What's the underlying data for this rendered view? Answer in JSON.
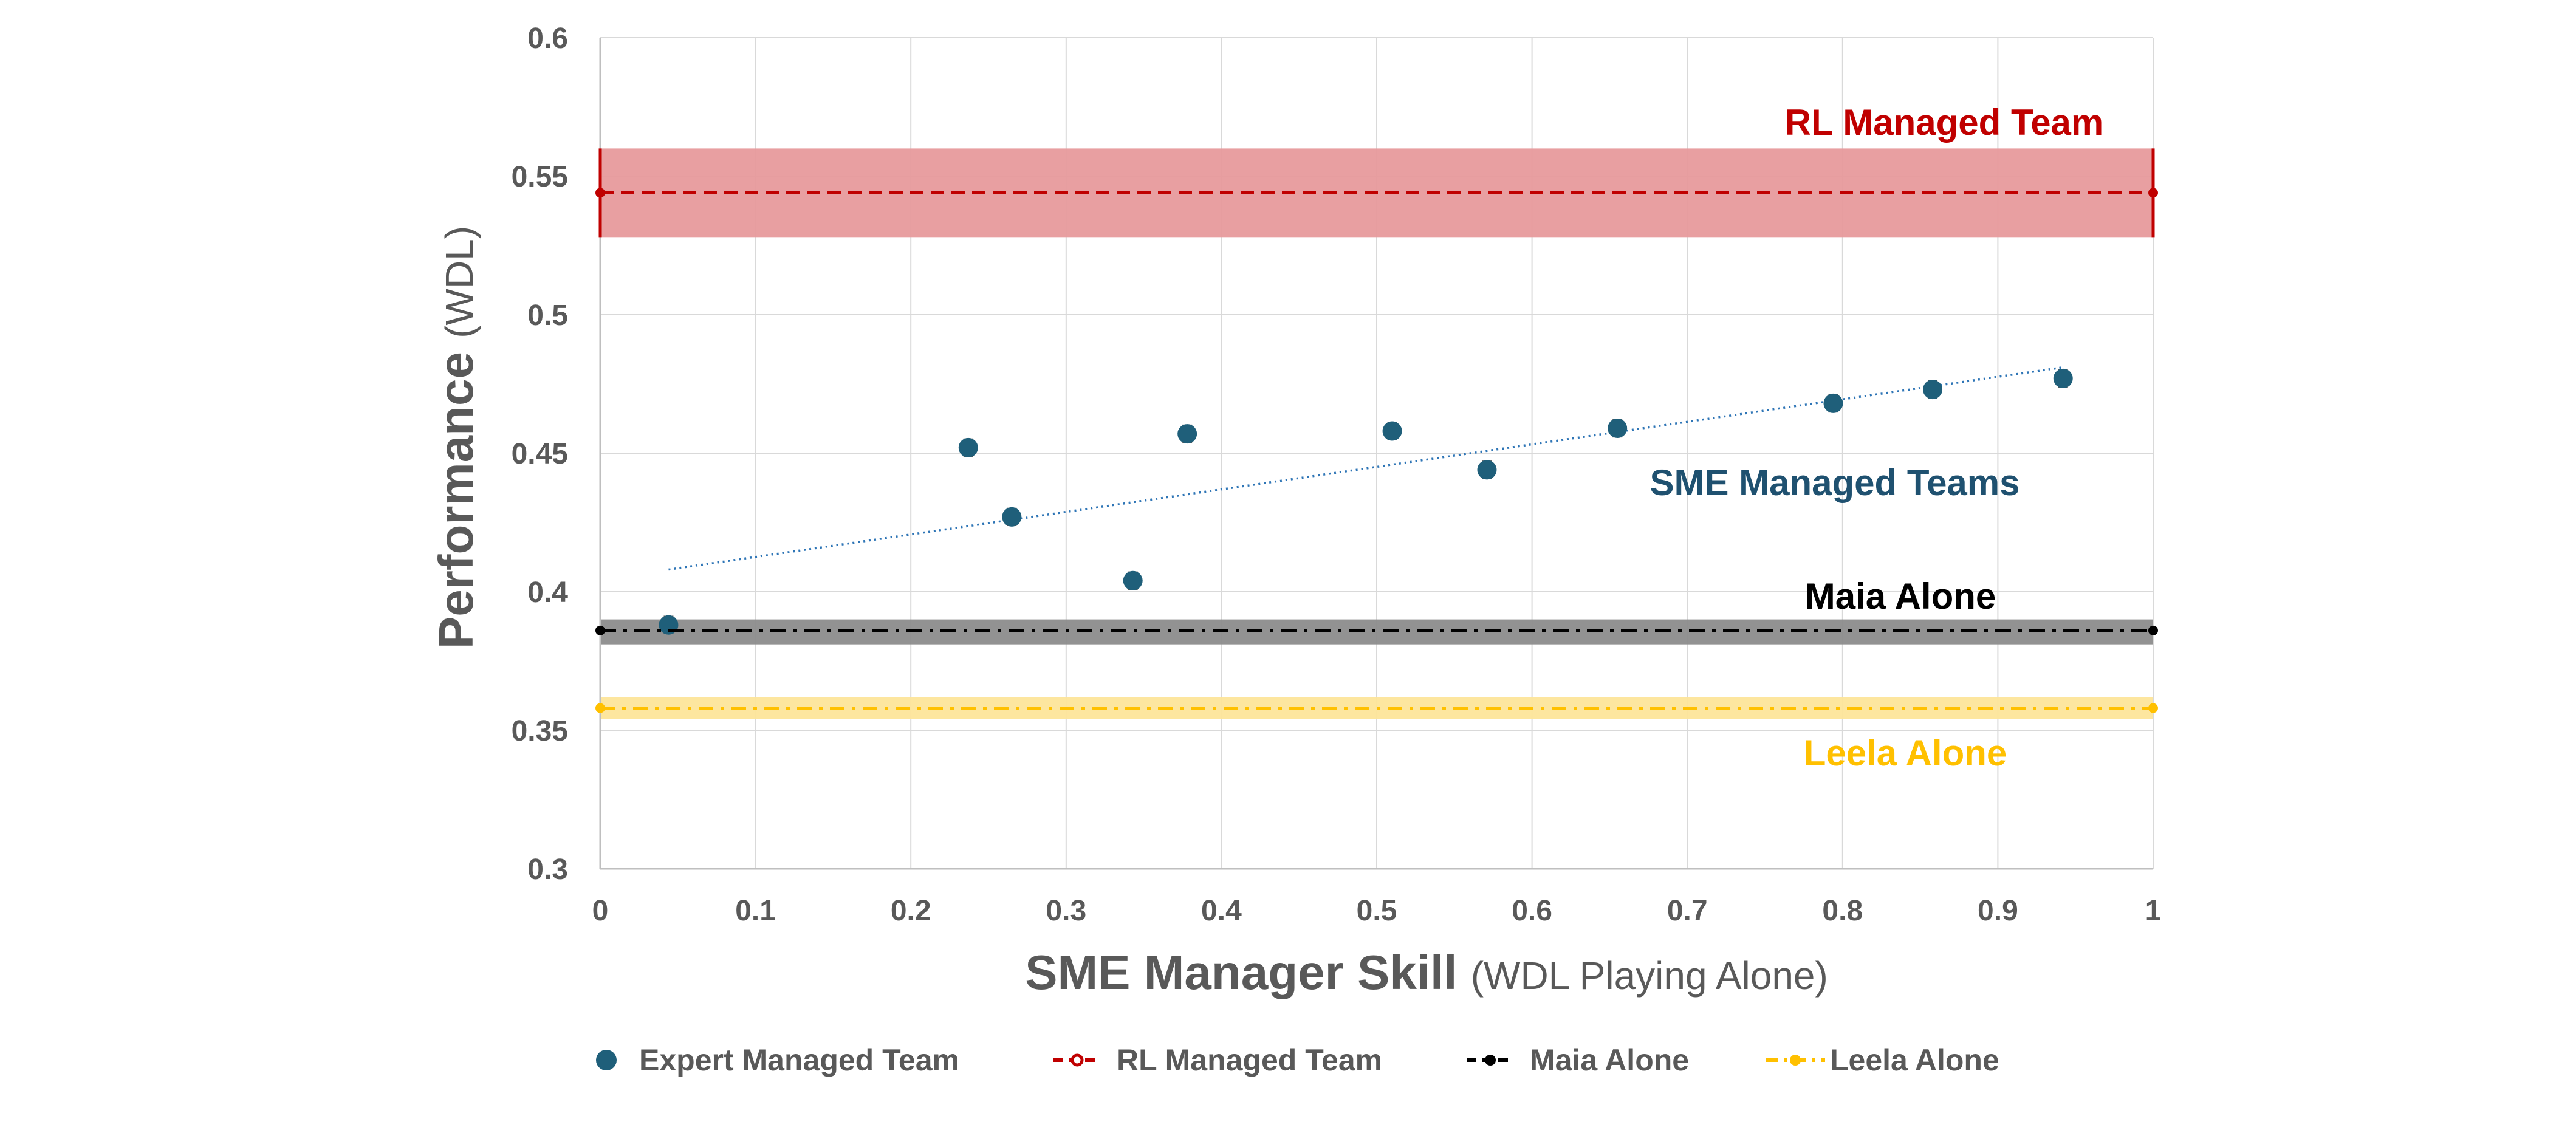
{
  "chart_data": {
    "type": "scatter",
    "title": "",
    "xlabel": {
      "bold": "SME Manager Skill",
      "light": "(WDL Playing Alone)"
    },
    "ylabel": {
      "bold": "Performance",
      "light": "(WDL)"
    },
    "xlim": [
      0,
      1
    ],
    "ylim": [
      0.3,
      0.6
    ],
    "x_ticks": [
      "0",
      "0.1",
      "0.2",
      "0.3",
      "0.4",
      "0.5",
      "0.6",
      "0.7",
      "0.8",
      "0.9",
      "1"
    ],
    "y_ticks": [
      "0.3",
      "0.35",
      "0.4",
      "0.45",
      "0.5",
      "0.55",
      "0.6"
    ],
    "grid": true,
    "legend_position": "bottom",
    "series": [
      {
        "name": "Expert Managed Team",
        "kind": "scatter",
        "color": "#1f5f7a",
        "points": [
          {
            "x": 0.044,
            "y": 0.388
          },
          {
            "x": 0.237,
            "y": 0.452
          },
          {
            "x": 0.265,
            "y": 0.427
          },
          {
            "x": 0.343,
            "y": 0.404
          },
          {
            "x": 0.378,
            "y": 0.457
          },
          {
            "x": 0.51,
            "y": 0.458
          },
          {
            "x": 0.571,
            "y": 0.444
          },
          {
            "x": 0.655,
            "y": 0.459
          },
          {
            "x": 0.794,
            "y": 0.468
          },
          {
            "x": 0.858,
            "y": 0.473
          },
          {
            "x": 0.942,
            "y": 0.477
          }
        ],
        "error": 0.003,
        "trendline": {
          "x": [
            0.044,
            0.942
          ],
          "y": [
            0.408,
            0.481
          ],
          "color": "#2e75b6"
        }
      },
      {
        "name": "RL Managed Team",
        "kind": "hline",
        "y": 0.544,
        "band": [
          0.528,
          0.56
        ],
        "color": "#c00000",
        "band_color": "#e79a9c"
      },
      {
        "name": "Maia Alone",
        "kind": "hline",
        "y": 0.386,
        "band": [
          0.381,
          0.39
        ],
        "color": "#000000",
        "band_color": "#8c8c8c"
      },
      {
        "name": "Leela Alone",
        "kind": "hline",
        "y": 0.358,
        "band": [
          0.354,
          0.362
        ],
        "color": "#ffc000",
        "band_color": "#fde59a"
      }
    ],
    "annotations": [
      {
        "text": "RL Managed Team",
        "color": "#c00000"
      },
      {
        "text": "SME Managed Teams",
        "color": "#1f5170"
      },
      {
        "text": "Maia Alone",
        "color": "#000000"
      },
      {
        "text": "Leela Alone",
        "color": "#ffc000"
      }
    ]
  }
}
